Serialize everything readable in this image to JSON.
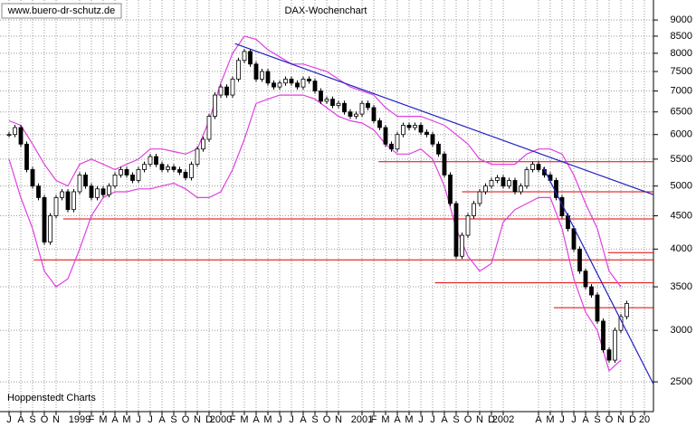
{
  "chart_data": {
    "type": "candlestick",
    "title": "DAX-Wochenchart",
    "watermark": "www.buero-dr-schutz.de",
    "source": "Hoppenstedt Charts",
    "log_scale": true,
    "grid": true,
    "ylim": [
      2250,
      9660
    ],
    "yticks": [
      2500,
      3000,
      3500,
      4000,
      4500,
      5000,
      5500,
      6000,
      6500,
      7000,
      7500,
      8000,
      8500,
      9000
    ],
    "xlim": [
      -0.77,
      54.77
    ],
    "xticks": [
      {
        "value": 0,
        "label": "J"
      },
      {
        "value": 1,
        "label": "A"
      },
      {
        "value": 2,
        "label": "S"
      },
      {
        "value": 3,
        "label": "O"
      },
      {
        "value": 4,
        "label": "N"
      },
      {
        "value": 6,
        "label": "1999"
      },
      {
        "value": 7,
        "label": "F"
      },
      {
        "value": 8,
        "label": "M"
      },
      {
        "value": 9,
        "label": "A"
      },
      {
        "value": 10,
        "label": "M"
      },
      {
        "value": 11,
        "label": "J"
      },
      {
        "value": 12,
        "label": "J"
      },
      {
        "value": 13,
        "label": "A"
      },
      {
        "value": 14,
        "label": "S"
      },
      {
        "value": 15,
        "label": "O"
      },
      {
        "value": 16,
        "label": "N"
      },
      {
        "value": 17,
        "label": "D"
      },
      {
        "value": 18,
        "label": "2000"
      },
      {
        "value": 19,
        "label": "F"
      },
      {
        "value": 20,
        "label": "M"
      },
      {
        "value": 21,
        "label": "A"
      },
      {
        "value": 22,
        "label": "M"
      },
      {
        "value": 23,
        "label": "J"
      },
      {
        "value": 24,
        "label": "J"
      },
      {
        "value": 25,
        "label": "A"
      },
      {
        "value": 26,
        "label": "S"
      },
      {
        "value": 27,
        "label": "O"
      },
      {
        "value": 28,
        "label": "N"
      },
      {
        "value": 30,
        "label": "2001"
      },
      {
        "value": 31,
        "label": "F"
      },
      {
        "value": 32,
        "label": "M"
      },
      {
        "value": 33,
        "label": "A"
      },
      {
        "value": 34,
        "label": "M"
      },
      {
        "value": 35,
        "label": "J"
      },
      {
        "value": 36,
        "label": "J"
      },
      {
        "value": 37,
        "label": "A"
      },
      {
        "value": 38,
        "label": "S"
      },
      {
        "value": 39,
        "label": "O"
      },
      {
        "value": 40,
        "label": "N"
      },
      {
        "value": 41,
        "label": "D"
      },
      {
        "value": 42,
        "label": "2002"
      },
      {
        "value": 45,
        "label": "A"
      },
      {
        "value": 46,
        "label": "M"
      },
      {
        "value": 47,
        "label": "J"
      },
      {
        "value": 48,
        "label": "J"
      },
      {
        "value": 49,
        "label": "A"
      },
      {
        "value": 50,
        "label": "S"
      },
      {
        "value": 51,
        "label": "O"
      },
      {
        "value": 52,
        "label": "N"
      },
      {
        "value": 53,
        "label": "D"
      },
      {
        "value": 54,
        "label": "20"
      }
    ],
    "x": [
      0,
      0.5,
      1,
      1.5,
      2,
      2.5,
      3,
      3.5,
      4,
      4.5,
      5,
      5.5,
      6,
      6.5,
      7,
      7.5,
      8,
      8.5,
      9,
      9.5,
      10,
      10.5,
      11,
      11.5,
      12,
      12.5,
      13,
      13.5,
      14,
      14.5,
      15,
      15.5,
      16,
      16.5,
      17,
      17.5,
      18,
      18.5,
      19,
      19.5,
      20,
      20.5,
      21,
      21.5,
      22,
      22.5,
      23,
      23.5,
      24,
      24.5,
      25,
      25.5,
      26,
      26.5,
      27,
      27.5,
      28,
      28.5,
      29,
      29.5,
      30,
      30.5,
      31,
      31.5,
      32,
      32.5,
      33,
      33.5,
      34,
      34.5,
      35,
      35.5,
      36,
      36.5,
      37,
      37.5,
      38,
      38.5,
      39,
      39.5,
      40,
      40.5,
      41,
      41.5,
      42,
      42.5,
      43,
      43.5,
      44,
      44.5,
      45,
      45.5,
      46,
      46.5,
      47,
      47.5,
      48,
      48.5,
      49,
      49.5,
      50,
      50.5,
      51,
      51.5,
      52,
      52.5
    ],
    "close": [
      6000,
      6150,
      5800,
      5300,
      5000,
      4800,
      4100,
      4500,
      4800,
      4900,
      4600,
      4900,
      5200,
      5000,
      4800,
      4950,
      4850,
      5000,
      5200,
      5300,
      5200,
      5100,
      5300,
      5400,
      5550,
      5400,
      5300,
      5350,
      5300,
      5250,
      5150,
      5400,
      5700,
      5900,
      6400,
      6900,
      7100,
      6900,
      7300,
      7800,
      8050,
      7700,
      7300,
      7500,
      7200,
      7100,
      7200,
      7300,
      7200,
      7100,
      7300,
      7250,
      7000,
      6750,
      6800,
      6650,
      6700,
      6500,
      6400,
      6450,
      6700,
      6600,
      6300,
      6150,
      5800,
      5700,
      6000,
      6200,
      6150,
      6200,
      6050,
      6000,
      5800,
      5600,
      5200,
      4700,
      3900,
      4200,
      4500,
      4700,
      4900,
      5000,
      5100,
      5150,
      5000,
      5100,
      4900,
      5000,
      5300,
      5400,
      5300,
      5200,
      5100,
      4800,
      4500,
      4300,
      4000,
      3700,
      3500,
      3400,
      3100,
      2800,
      2700,
      3000,
      3150,
      3300
    ],
    "bands": {
      "color": "#e040e0",
      "x": [
        0,
        1,
        2,
        3,
        4,
        5,
        6,
        7,
        8,
        9,
        10,
        11,
        12,
        13,
        14,
        15,
        16,
        17,
        18,
        19,
        20,
        21,
        22,
        23,
        24,
        25,
        26,
        27,
        28,
        29,
        30,
        31,
        32,
        33,
        34,
        35,
        36,
        37,
        38,
        39,
        40,
        41,
        42,
        43,
        44,
        45,
        46,
        47,
        48,
        49,
        50,
        51,
        52
      ],
      "upper": [
        6300,
        6200,
        5800,
        5400,
        5100,
        5000,
        5400,
        5500,
        5400,
        5300,
        5400,
        5500,
        5700,
        5700,
        5650,
        5600,
        5700,
        6300,
        7200,
        8000,
        8500,
        8400,
        8100,
        7900,
        7700,
        7700,
        7600,
        7500,
        7300,
        7100,
        7000,
        6900,
        6600,
        6400,
        6400,
        6400,
        6300,
        6200,
        6000,
        5800,
        5500,
        5400,
        5400,
        5400,
        5600,
        5700,
        5700,
        5600,
        5200,
        4700,
        4300,
        3700,
        3500
      ],
      "lower": [
        5500,
        4800,
        4300,
        3700,
        3500,
        3600,
        4000,
        4500,
        4800,
        4900,
        4900,
        4950,
        4950,
        5000,
        5050,
        4950,
        4800,
        4800,
        4900,
        5300,
        5900,
        6700,
        6800,
        6900,
        6900,
        6900,
        6800,
        6600,
        6400,
        6300,
        6250,
        6100,
        5800,
        5600,
        5600,
        5700,
        5500,
        5000,
        4300,
        3900,
        3700,
        3800,
        4400,
        4600,
        4700,
        4800,
        4800,
        4300,
        3600,
        3200,
        3000,
        2600,
        2700
      ]
    },
    "support_lines": {
      "color": "#e00000",
      "lines": [
        {
          "value": 5450,
          "from": 31.4
        },
        {
          "value": 4900,
          "from": 38.5
        },
        {
          "value": 4450,
          "from": 4.6
        },
        {
          "value": 3950,
          "from": 50.9
        },
        {
          "value": 3850,
          "from": 2.1
        },
        {
          "value": 3550,
          "from": 36.2
        },
        {
          "value": 3250,
          "from": 46.3
        }
      ]
    },
    "trend_lines": {
      "color": "#2020c0",
      "lines": [
        {
          "x": [
            19.2,
            54.77
          ],
          "values": [
            8280,
            4850
          ]
        },
        {
          "x": [
            45.4,
            54.77
          ],
          "values": [
            5340,
            2480
          ]
        }
      ]
    }
  }
}
